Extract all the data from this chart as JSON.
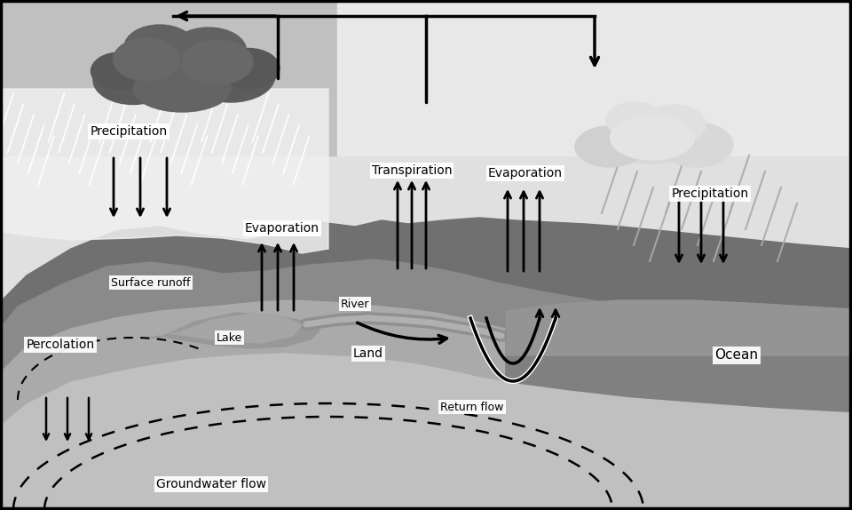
{
  "labels": {
    "precipitation_left": "Precipitation",
    "precipitation_right": "Precipitation",
    "evaporation_left": "Evaporation",
    "evaporation_right": "Evaporation",
    "transpiration": "Transpiration",
    "surface_runoff": "Surface runoff",
    "percolation": "Percolation",
    "lake": "Lake",
    "river": "River",
    "land": "Land",
    "ocean": "Ocean",
    "return_flow": "Return flow",
    "groundwater_flow": "Groundwater flow"
  },
  "colors": {
    "sky": "#e0e0e0",
    "sky_upper_right": "#d8d8d8",
    "storm_cloud_dark": "#5a5a5a",
    "storm_cloud_mid": "#707070",
    "storm_cloud_light": "#888888",
    "terrain_dark": "#7a7a7a",
    "terrain_mid": "#9a9a9a",
    "terrain_light": "#b8b8b8",
    "terrain_lightest": "#c8c8c8",
    "ocean": "#888888",
    "ocean_light": "#a0a0a0",
    "lake": "#9a9a9a",
    "white": "#ffffff",
    "black": "#000000",
    "rain_white": "#e8e8e8",
    "ground_bottom": "#c0c0c0"
  }
}
